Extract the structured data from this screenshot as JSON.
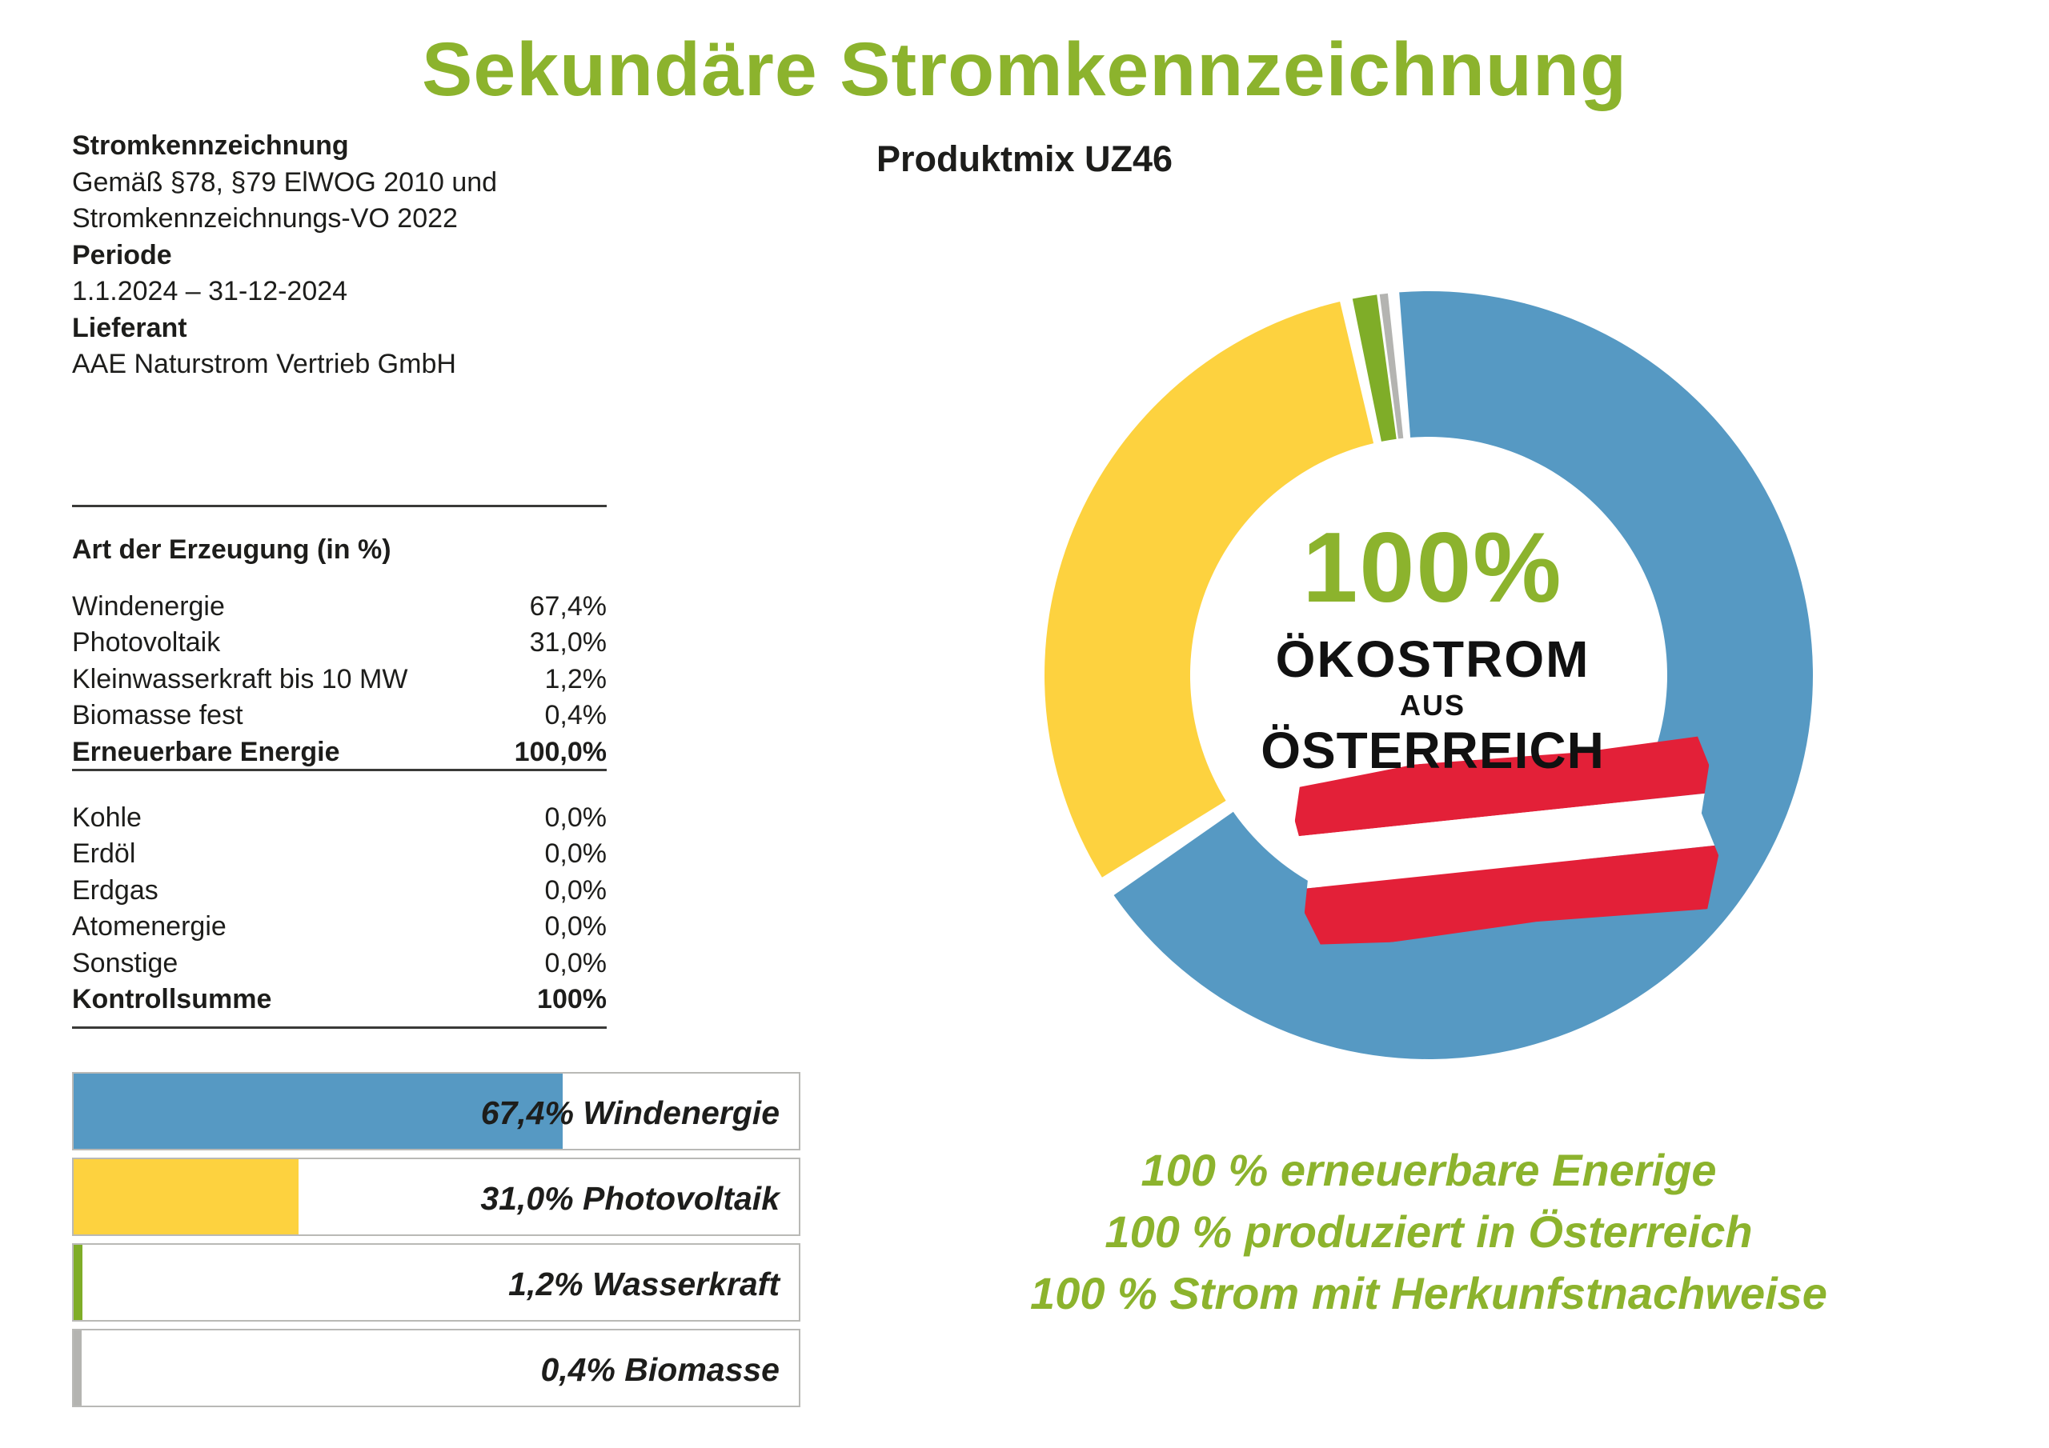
{
  "header": {
    "title": "Sekundäre Stromkennzeichnung",
    "subtitle": "Produktmix UZ46"
  },
  "info": {
    "lines": [
      {
        "t": "Stromkennzeichnung",
        "bold": true
      },
      {
        "t": "Gemäß §78, §79 ElWOG 2010 und",
        "bold": false
      },
      {
        "t": "Stromkennzeichnungs-VO 2022",
        "bold": false
      },
      {
        "t": "Periode",
        "bold": true
      },
      {
        "t": "1.1.2024 – 31-12-2024",
        "bold": false
      },
      {
        "t": "Lieferant",
        "bold": true
      },
      {
        "t": "AAE Naturstrom Vertrieb GmbH",
        "bold": false
      }
    ]
  },
  "table": {
    "header": "Art der Erzeugung (in %)",
    "renewables": [
      {
        "label": "Windenergie",
        "value": "67,4%"
      },
      {
        "label": "Photovoltaik",
        "value": "31,0%"
      },
      {
        "label": "Kleinwasserkraft bis 10 MW",
        "value": "1,2%"
      },
      {
        "label": "Biomasse fest",
        "value": "0,4%"
      },
      {
        "label": "Erneuerbare Energie",
        "value": "100,0%"
      }
    ],
    "others": [
      {
        "label": "Kohle",
        "value": "0,0%"
      },
      {
        "label": "Erdöl",
        "value": "0,0%"
      },
      {
        "label": "Erdgas",
        "value": "0,0%"
      },
      {
        "label": "Atomenergie",
        "value": "0,0%"
      },
      {
        "label": "Sonstige",
        "value": "0,0%"
      },
      {
        "label": "Kontrollsumme",
        "value": "100%"
      }
    ]
  },
  "slogan": {
    "lines": [
      "100 % erneuerbare Enerige",
      "100 % produziert in Österreich",
      "100 % Strom mit Herkunfstnachweise"
    ]
  },
  "colors": {
    "brand_green": "#8cb32d",
    "chart_blue": "#5699c3",
    "chart_yellow": "#fdd23f",
    "chart_green": "#7fad28",
    "chart_gray": "#b4b4b1",
    "flag_red": "#e32038"
  },
  "chart_data": [
    {
      "type": "bar",
      "orientation": "horizontal",
      "categories": [
        "Windenergie",
        "Photovoltaik",
        "Wasserkraft",
        "Biomasse"
      ],
      "values": [
        67.4,
        31.0,
        1.2,
        0.4
      ],
      "labels": [
        "67,4% Windenergie",
        "31,0% Photovoltaik",
        "1,2% Wasserkraft",
        "0,4% Biomasse"
      ],
      "colors": [
        "#5699c3",
        "#fdd23f",
        "#7fad28",
        "#b4b4b1"
      ],
      "xlim": [
        0,
        100
      ],
      "grid": false,
      "legend": "none"
    },
    {
      "type": "pie",
      "donut": true,
      "categories": [
        "Windenergie",
        "Photovoltaik",
        "Kleinwasserkraft bis 10 MW",
        "Biomasse fest"
      ],
      "values": [
        67.4,
        31.0,
        1.2,
        0.4
      ],
      "colors": [
        "#5699c3",
        "#fdd23f",
        "#7fad28",
        "#b4b4b1"
      ],
      "start_angle_deg": -6,
      "gap_deg": 3.2,
      "center_label": [
        "100%",
        "ÖKOSTROM",
        "AUS",
        "ÖSTERREICH"
      ]
    }
  ]
}
